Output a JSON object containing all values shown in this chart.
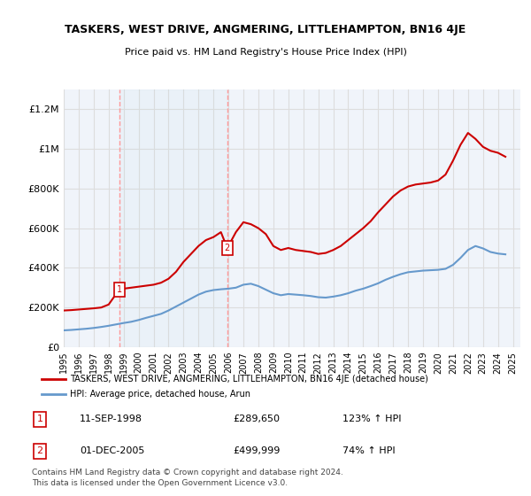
{
  "title": "TASKERS, WEST DRIVE, ANGMERING, LITTLEHAMPTON, BN16 4JE",
  "subtitle": "Price paid vs. HM Land Registry's House Price Index (HPI)",
  "legend_line1": "TASKERS, WEST DRIVE, ANGMERING, LITTLEHAMPTON, BN16 4JE (detached house)",
  "legend_line2": "HPI: Average price, detached house, Arun",
  "footer1": "Contains HM Land Registry data © Crown copyright and database right 2024.",
  "footer2": "This data is licensed under the Open Government Licence v3.0.",
  "sale1_label": "1",
  "sale1_date": "11-SEP-1998",
  "sale1_price": "£289,650",
  "sale1_hpi": "123% ↑ HPI",
  "sale1_year": 1998.7,
  "sale1_value": 289650,
  "sale2_label": "2",
  "sale2_date": "01-DEC-2005",
  "sale2_price": "£499,999",
  "sale2_hpi": "74% ↑ HPI",
  "sale2_year": 2005.92,
  "sale2_value": 499999,
  "red_color": "#cc0000",
  "blue_color": "#6699cc",
  "marker_box_color": "#cc0000",
  "vline_color": "#ff9999",
  "grid_color": "#dddddd",
  "bg_color": "#f0f4fa",
  "ylim": [
    0,
    1300000
  ],
  "xlim_start": 1995.0,
  "xlim_end": 2025.5,
  "red_x": [
    1995.0,
    1995.5,
    1996.0,
    1996.5,
    1997.0,
    1997.5,
    1998.0,
    1998.7,
    1999.0,
    1999.5,
    2000.0,
    2000.5,
    2001.0,
    2001.5,
    2002.0,
    2002.5,
    2003.0,
    2003.5,
    2004.0,
    2004.5,
    2005.0,
    2005.5,
    2005.92,
    2006.0,
    2006.5,
    2007.0,
    2007.5,
    2008.0,
    2008.5,
    2009.0,
    2009.5,
    2010.0,
    2010.5,
    2011.0,
    2011.5,
    2012.0,
    2012.5,
    2013.0,
    2013.5,
    2014.0,
    2014.5,
    2015.0,
    2015.5,
    2016.0,
    2016.5,
    2017.0,
    2017.5,
    2018.0,
    2018.5,
    2019.0,
    2019.5,
    2020.0,
    2020.5,
    2021.0,
    2021.5,
    2022.0,
    2022.5,
    2023.0,
    2023.5,
    2024.0,
    2024.5
  ],
  "red_y": [
    185000,
    187000,
    190000,
    193000,
    196000,
    200000,
    215000,
    289650,
    295000,
    300000,
    305000,
    310000,
    315000,
    325000,
    345000,
    380000,
    430000,
    470000,
    510000,
    540000,
    555000,
    580000,
    499999,
    510000,
    580000,
    630000,
    620000,
    600000,
    570000,
    510000,
    490000,
    500000,
    490000,
    485000,
    480000,
    470000,
    475000,
    490000,
    510000,
    540000,
    570000,
    600000,
    635000,
    680000,
    720000,
    760000,
    790000,
    810000,
    820000,
    825000,
    830000,
    840000,
    870000,
    940000,
    1020000,
    1080000,
    1050000,
    1010000,
    990000,
    980000,
    960000
  ],
  "blue_x": [
    1995.0,
    1995.5,
    1996.0,
    1996.5,
    1997.0,
    1997.5,
    1998.0,
    1998.5,
    1999.0,
    1999.5,
    2000.0,
    2000.5,
    2001.0,
    2001.5,
    2002.0,
    2002.5,
    2003.0,
    2003.5,
    2004.0,
    2004.5,
    2005.0,
    2005.5,
    2006.0,
    2006.5,
    2007.0,
    2007.5,
    2008.0,
    2008.5,
    2009.0,
    2009.5,
    2010.0,
    2010.5,
    2011.0,
    2011.5,
    2012.0,
    2012.5,
    2013.0,
    2013.5,
    2014.0,
    2014.5,
    2015.0,
    2015.5,
    2016.0,
    2016.5,
    2017.0,
    2017.5,
    2018.0,
    2018.5,
    2019.0,
    2019.5,
    2020.0,
    2020.5,
    2021.0,
    2021.5,
    2022.0,
    2022.5,
    2023.0,
    2023.5,
    2024.0,
    2024.5
  ],
  "blue_y": [
    85000,
    87000,
    90000,
    93000,
    97000,
    102000,
    108000,
    115000,
    122000,
    128000,
    137000,
    148000,
    158000,
    168000,
    185000,
    205000,
    225000,
    245000,
    265000,
    280000,
    288000,
    292000,
    295000,
    300000,
    315000,
    320000,
    308000,
    290000,
    272000,
    262000,
    268000,
    265000,
    262000,
    258000,
    252000,
    250000,
    255000,
    262000,
    272000,
    285000,
    295000,
    308000,
    322000,
    340000,
    355000,
    368000,
    378000,
    382000,
    386000,
    388000,
    390000,
    395000,
    415000,
    450000,
    490000,
    510000,
    498000,
    480000,
    472000,
    468000
  ],
  "yticks": [
    0,
    200000,
    400000,
    600000,
    800000,
    1000000,
    1200000
  ],
  "ytick_labels": [
    "£0",
    "£200K",
    "£400K",
    "£600K",
    "£800K",
    "£1M",
    "£1.2M"
  ],
  "xticks": [
    1995,
    1996,
    1997,
    1998,
    1999,
    2000,
    2001,
    2002,
    2003,
    2004,
    2005,
    2006,
    2007,
    2008,
    2009,
    2010,
    2011,
    2012,
    2013,
    2014,
    2015,
    2016,
    2017,
    2018,
    2019,
    2020,
    2021,
    2022,
    2023,
    2024,
    2025
  ]
}
